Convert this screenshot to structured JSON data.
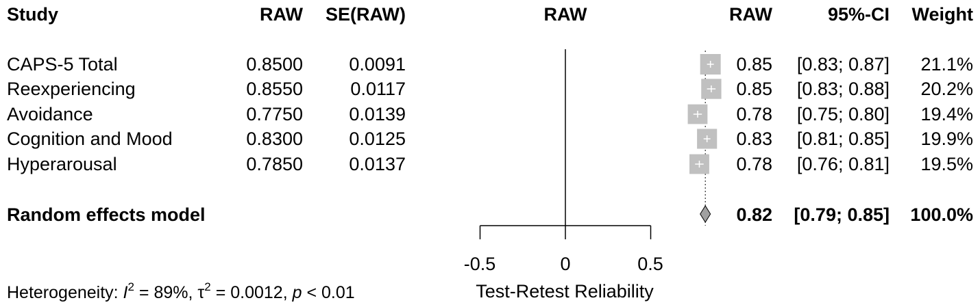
{
  "headers": {
    "study": "Study",
    "raw": "RAW",
    "se_raw": "SE(RAW)",
    "plot_col": "RAW",
    "raw_right": "RAW",
    "ci": "95%-CI",
    "weight": "Weight"
  },
  "chart_data": {
    "type": "forest",
    "xlabel": "Test-Retest Reliability",
    "xlim": [
      -0.5,
      0.5
    ],
    "xticks": [
      "-0.5",
      "0",
      "0.5"
    ],
    "xtick_values": [
      -0.5,
      0,
      0.5
    ],
    "reference_line": 0,
    "marker_color": "#c0c0c0",
    "diamond_color": "#a0a0a0",
    "studies": [
      {
        "name": "CAPS-5 Total",
        "raw": "0.8500",
        "se": "0.0091",
        "est": 0.85,
        "lo": 0.83,
        "hi": 0.87,
        "est_label": "0.85",
        "ci_label": "[0.83; 0.87]",
        "weight_label": "21.1%",
        "weight": 21.1
      },
      {
        "name": "Reexperiencing",
        "raw": "0.8550",
        "se": "0.0117",
        "est": 0.855,
        "lo": 0.83,
        "hi": 0.88,
        "est_label": "0.85",
        "ci_label": "[0.83; 0.88]",
        "weight_label": "20.2%",
        "weight": 20.2
      },
      {
        "name": "Avoidance",
        "raw": "0.7750",
        "se": "0.0139",
        "est": 0.775,
        "lo": 0.75,
        "hi": 0.8,
        "est_label": "0.78",
        "ci_label": "[0.75; 0.80]",
        "weight_label": "19.4%",
        "weight": 19.4
      },
      {
        "name": "Cognition and Mood",
        "raw": "0.8300",
        "se": "0.0125",
        "est": 0.83,
        "lo": 0.81,
        "hi": 0.85,
        "est_label": "0.83",
        "ci_label": "[0.81; 0.85]",
        "weight_label": "19.9%",
        "weight": 19.9
      },
      {
        "name": "Hyperarousal",
        "raw": "0.7850",
        "se": "0.0137",
        "est": 0.785,
        "lo": 0.76,
        "hi": 0.81,
        "est_label": "0.78",
        "ci_label": "[0.76; 0.81]",
        "weight_label": "19.5%",
        "weight": 19.5
      }
    ],
    "pooled": {
      "name": "Random effects model",
      "est": 0.82,
      "lo": 0.79,
      "hi": 0.85,
      "est_label": "0.82",
      "ci_label": "[0.79; 0.85]",
      "weight_label": "100.0%"
    },
    "heterogeneity": {
      "prefix": "Heterogeneity: ",
      "i2_symbol": "I",
      "i2_sup": "2",
      "i2_value": " = 89%, ",
      "tau_symbol": "τ",
      "tau_sup": "2",
      "tau_value": " = 0.0012, ",
      "p_symbol": "p",
      "p_value": " < 0.01"
    }
  }
}
